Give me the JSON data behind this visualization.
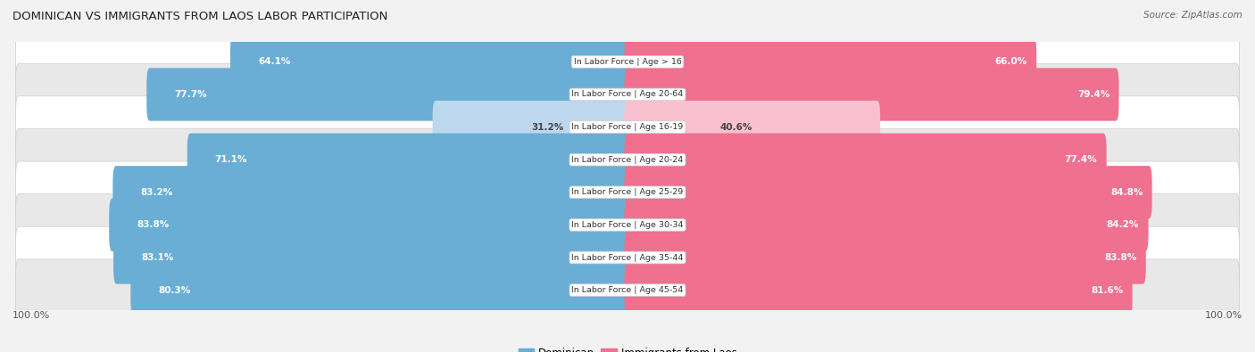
{
  "title": "DOMINICAN VS IMMIGRANTS FROM LAOS LABOR PARTICIPATION",
  "source": "Source: ZipAtlas.com",
  "categories": [
    "In Labor Force | Age > 16",
    "In Labor Force | Age 20-64",
    "In Labor Force | Age 16-19",
    "In Labor Force | Age 20-24",
    "In Labor Force | Age 25-29",
    "In Labor Force | Age 30-34",
    "In Labor Force | Age 35-44",
    "In Labor Force | Age 45-54"
  ],
  "dominican": [
    64.1,
    77.7,
    31.2,
    71.1,
    83.2,
    83.8,
    83.1,
    80.3
  ],
  "laos": [
    66.0,
    79.4,
    40.6,
    77.4,
    84.8,
    84.2,
    83.8,
    81.6
  ],
  "dominican_color": "#6AAED6",
  "laos_color": "#F07090",
  "dominican_light_color": "#BDD7EE",
  "laos_light_color": "#F9C0D0",
  "background_color": "#f2f2f2",
  "row_bg": "#ffffff",
  "row_bg_alt": "#e8e8e8",
  "label_white": "#ffffff",
  "label_dark": "#444444",
  "max_val": 100.0,
  "bar_height": 0.62,
  "legend_dominican": "Dominican",
  "legend_laos": "Immigrants from Laos",
  "title_fontsize": 9.5,
  "source_fontsize": 7.5,
  "label_fontsize": 7.5,
  "cat_fontsize": 6.8
}
